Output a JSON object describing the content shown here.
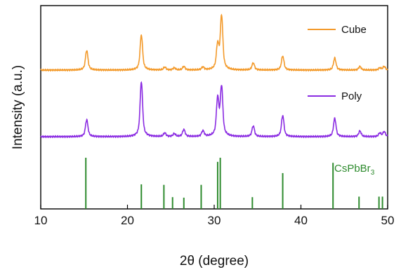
{
  "chart_data": {
    "type": "line",
    "xlabel": "2θ (degree)",
    "ylabel": "Intensity (a.u.)",
    "xlim": [
      10,
      50
    ],
    "x_ticks": [
      "10",
      "20",
      "30",
      "40",
      "50"
    ],
    "y_ticks_shown": false,
    "grid": false,
    "legend": "inline, right of each trace",
    "series": [
      {
        "name": "Cube",
        "color": "#F39A2B",
        "baseline": 0,
        "peaks": [
          {
            "x": 15.3,
            "h": 28
          },
          {
            "x": 21.6,
            "h": 50
          },
          {
            "x": 24.3,
            "h": 4
          },
          {
            "x": 25.4,
            "h": 3
          },
          {
            "x": 26.5,
            "h": 5
          },
          {
            "x": 28.7,
            "h": 4
          },
          {
            "x": 30.4,
            "h": 34
          },
          {
            "x": 30.85,
            "h": 76
          },
          {
            "x": 34.5,
            "h": 10
          },
          {
            "x": 37.9,
            "h": 20
          },
          {
            "x": 43.9,
            "h": 17
          },
          {
            "x": 46.8,
            "h": 5
          },
          {
            "x": 49.1,
            "h": 3
          },
          {
            "x": 49.6,
            "h": 5
          }
        ]
      },
      {
        "name": "Poly",
        "color": "#8A2BE2",
        "baseline": 0,
        "peaks": [
          {
            "x": 15.3,
            "h": 24
          },
          {
            "x": 21.6,
            "h": 78
          },
          {
            "x": 24.3,
            "h": 5
          },
          {
            "x": 25.4,
            "h": 4
          },
          {
            "x": 26.5,
            "h": 10
          },
          {
            "x": 28.7,
            "h": 8
          },
          {
            "x": 30.4,
            "h": 52
          },
          {
            "x": 30.85,
            "h": 69
          },
          {
            "x": 34.5,
            "h": 15
          },
          {
            "x": 37.9,
            "h": 30
          },
          {
            "x": 43.9,
            "h": 26
          },
          {
            "x": 46.8,
            "h": 8
          },
          {
            "x": 49.1,
            "h": 5
          },
          {
            "x": 49.6,
            "h": 7
          }
        ]
      }
    ],
    "reference": {
      "label_main": "CsPbBr",
      "label_sub": "3",
      "color": "#2E8B2E",
      "lines": [
        {
          "x": 15.2,
          "h": 100
        },
        {
          "x": 21.6,
          "h": 48
        },
        {
          "x": 24.2,
          "h": 47
        },
        {
          "x": 25.2,
          "h": 23
        },
        {
          "x": 26.5,
          "h": 22
        },
        {
          "x": 28.5,
          "h": 47
        },
        {
          "x": 30.4,
          "h": 92
        },
        {
          "x": 30.7,
          "h": 100
        },
        {
          "x": 34.4,
          "h": 23
        },
        {
          "x": 37.9,
          "h": 70
        },
        {
          "x": 43.7,
          "h": 90
        },
        {
          "x": 46.7,
          "h": 24
        },
        {
          "x": 49.0,
          "h": 24
        },
        {
          "x": 49.4,
          "h": 24
        }
      ]
    }
  }
}
